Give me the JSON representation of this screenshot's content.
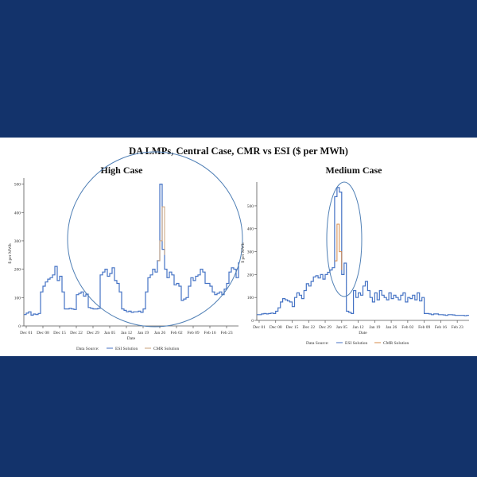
{
  "figure": {
    "title": "DA LMPs, Central Case, CMR vs ESI ($ per MWh)"
  },
  "chart_data": [
    {
      "type": "line",
      "title": "High Case",
      "xlabel": "Date",
      "ylabel": "$ per MWh",
      "ylim": [
        0,
        510
      ],
      "yticks": [
        0,
        100,
        200,
        300,
        400,
        500
      ],
      "xlim": [
        "Nov 30",
        "Feb 28"
      ],
      "xticks": [
        "Dec 01",
        "Dec 08",
        "Dec 15",
        "Dec 22",
        "Dec 29",
        "Jan 05",
        "Jan 12",
        "Jan 19",
        "Jan 26",
        "Feb 02",
        "Feb 09",
        "Feb 16",
        "Feb 23"
      ],
      "grid": false,
      "legend": {
        "position": "bottom",
        "title": "Data Source:",
        "entries": [
          "ESI Solution",
          "CMR Solution"
        ]
      },
      "annotation": "circle around Jan 26 spike region",
      "series": [
        {
          "name": "ESI Solution",
          "color": "#4472c4",
          "x": [
            "Nov 30",
            "Dec 01",
            "Dec 02",
            "Dec 03",
            "Dec 04",
            "Dec 05",
            "Dec 06",
            "Dec 07",
            "Dec 08",
            "Dec 09",
            "Dec 10",
            "Dec 11",
            "Dec 12",
            "Dec 13",
            "Dec 14",
            "Dec 15",
            "Dec 16",
            "Dec 17",
            "Dec 18",
            "Dec 19",
            "Dec 20",
            "Dec 21",
            "Dec 22",
            "Dec 23",
            "Dec 24",
            "Dec 25",
            "Dec 26",
            "Dec 27",
            "Dec 28",
            "Dec 29",
            "Dec 30",
            "Dec 31",
            "Jan 01",
            "Jan 02",
            "Jan 03",
            "Jan 04",
            "Jan 05",
            "Jan 06",
            "Jan 07",
            "Jan 08",
            "Jan 09",
            "Jan 10",
            "Jan 11",
            "Jan 12",
            "Jan 13",
            "Jan 14",
            "Jan 15",
            "Jan 16",
            "Jan 17",
            "Jan 18",
            "Jan 19",
            "Jan 20",
            "Jan 21",
            "Jan 22",
            "Jan 23",
            "Jan 24",
            "Jan 25",
            "Jan 26",
            "Jan 27",
            "Jan 28",
            "Jan 29",
            "Jan 30",
            "Jan 31",
            "Feb 01",
            "Feb 02",
            "Feb 03",
            "Feb 04",
            "Feb 05",
            "Feb 06",
            "Feb 07",
            "Feb 08",
            "Feb 09",
            "Feb 10",
            "Feb 11",
            "Feb 12",
            "Feb 13",
            "Feb 14",
            "Feb 15",
            "Feb 16",
            "Feb 17",
            "Feb 18",
            "Feb 19",
            "Feb 20",
            "Feb 21",
            "Feb 22",
            "Feb 23",
            "Feb 24",
            "Feb 25",
            "Feb 26",
            "Feb 27",
            "Feb 28"
          ],
          "y": [
            40,
            45,
            50,
            38,
            42,
            40,
            44,
            120,
            140,
            155,
            165,
            170,
            180,
            210,
            160,
            175,
            120,
            60,
            60,
            62,
            60,
            58,
            110,
            115,
            120,
            105,
            112,
            65,
            62,
            60,
            60,
            62,
            180,
            190,
            200,
            175,
            185,
            205,
            160,
            150,
            120,
            60,
            55,
            50,
            52,
            48,
            50,
            50,
            52,
            48,
            60,
            120,
            170,
            180,
            200,
            190,
            230,
            500,
            270,
            200,
            170,
            190,
            180,
            145,
            150,
            140,
            90,
            95,
            100,
            140,
            170,
            160,
            175,
            180,
            200,
            190,
            150,
            150,
            140,
            120,
            110,
            115,
            120,
            110,
            130,
            150,
            190,
            205,
            200,
            170,
            225
          ]
        },
        {
          "name": "CMR Solution",
          "color": "#c9a07a",
          "x": [
            "Jan 25",
            "Jan 26",
            "Jan 27",
            "Jan 28"
          ],
          "y": [
            230,
            300,
            420,
            250
          ]
        }
      ]
    },
    {
      "type": "line",
      "title": "Medium Case",
      "xlabel": "Date",
      "ylabel": "$ per MWh",
      "ylim": [
        0,
        590
      ],
      "yticks": [
        0,
        100,
        200,
        300,
        400,
        500
      ],
      "xlim": [
        "Nov 30",
        "Feb 28"
      ],
      "xticks": [
        "Dec 01",
        "Dec 08",
        "Dec 15",
        "Dec 22",
        "Dec 29",
        "Jan 05",
        "Jan 12",
        "Jan 19",
        "Jan 26",
        "Feb 02",
        "Feb 09",
        "Feb 16",
        "Feb 23"
      ],
      "grid": false,
      "legend": {
        "position": "bottom",
        "title": "Data Source:",
        "entries": [
          "ESI Solution",
          "CMR Solution"
        ]
      },
      "annotation": "ellipse around Jan 05 spike region",
      "series": [
        {
          "name": "ESI Solution",
          "color": "#4472c4",
          "x": [
            "Nov 30",
            "Dec 01",
            "Dec 02",
            "Dec 03",
            "Dec 04",
            "Dec 05",
            "Dec 06",
            "Dec 07",
            "Dec 08",
            "Dec 09",
            "Dec 10",
            "Dec 11",
            "Dec 12",
            "Dec 13",
            "Dec 14",
            "Dec 15",
            "Dec 16",
            "Dec 17",
            "Dec 18",
            "Dec 19",
            "Dec 20",
            "Dec 21",
            "Dec 22",
            "Dec 23",
            "Dec 24",
            "Dec 25",
            "Dec 26",
            "Dec 27",
            "Dec 28",
            "Dec 29",
            "Dec 30",
            "Dec 31",
            "Jan 01",
            "Jan 02",
            "Jan 03",
            "Jan 04",
            "Jan 05",
            "Jan 06",
            "Jan 07",
            "Jan 08",
            "Jan 09",
            "Jan 10",
            "Jan 11",
            "Jan 12",
            "Jan 13",
            "Jan 14",
            "Jan 15",
            "Jan 16",
            "Jan 17",
            "Jan 18",
            "Jan 19",
            "Jan 20",
            "Jan 21",
            "Jan 22",
            "Jan 23",
            "Jan 24",
            "Jan 25",
            "Jan 26",
            "Jan 27",
            "Jan 28",
            "Jan 29",
            "Jan 30",
            "Jan 31",
            "Feb 01",
            "Feb 02",
            "Feb 03",
            "Feb 04",
            "Feb 05",
            "Feb 06",
            "Feb 07",
            "Feb 08",
            "Feb 09",
            "Feb 10",
            "Feb 11",
            "Feb 12",
            "Feb 13",
            "Feb 14",
            "Feb 15",
            "Feb 16",
            "Feb 17",
            "Feb 18",
            "Feb 19",
            "Feb 20",
            "Feb 21",
            "Feb 22",
            "Feb 23",
            "Feb 24",
            "Feb 25",
            "Feb 26",
            "Feb 27",
            "Feb 28"
          ],
          "y": [
            25,
            25,
            28,
            30,
            28,
            30,
            32,
            30,
            40,
            55,
            80,
            95,
            90,
            85,
            80,
            60,
            100,
            120,
            110,
            95,
            130,
            160,
            150,
            170,
            190,
            195,
            185,
            200,
            180,
            200,
            210,
            220,
            230,
            540,
            580,
            560,
            200,
            250,
            40,
            35,
            30,
            130,
            100,
            120,
            110,
            150,
            170,
            130,
            100,
            80,
            120,
            90,
            130,
            110,
            100,
            90,
            120,
            95,
            110,
            100,
            90,
            110,
            120,
            80,
            100,
            95,
            110,
            90,
            120,
            85,
            100,
            30,
            30,
            28,
            25,
            28,
            28,
            25,
            25,
            24,
            22,
            25,
            25,
            24,
            22,
            22,
            22,
            22,
            20,
            22,
            22
          ]
        },
        {
          "name": "CMR Solution",
          "color": "#d4884a",
          "x": [
            "Jan 02",
            "Jan 03",
            "Jan 04",
            "Jan 05"
          ],
          "y": [
            260,
            420,
            300,
            220
          ]
        }
      ]
    }
  ]
}
